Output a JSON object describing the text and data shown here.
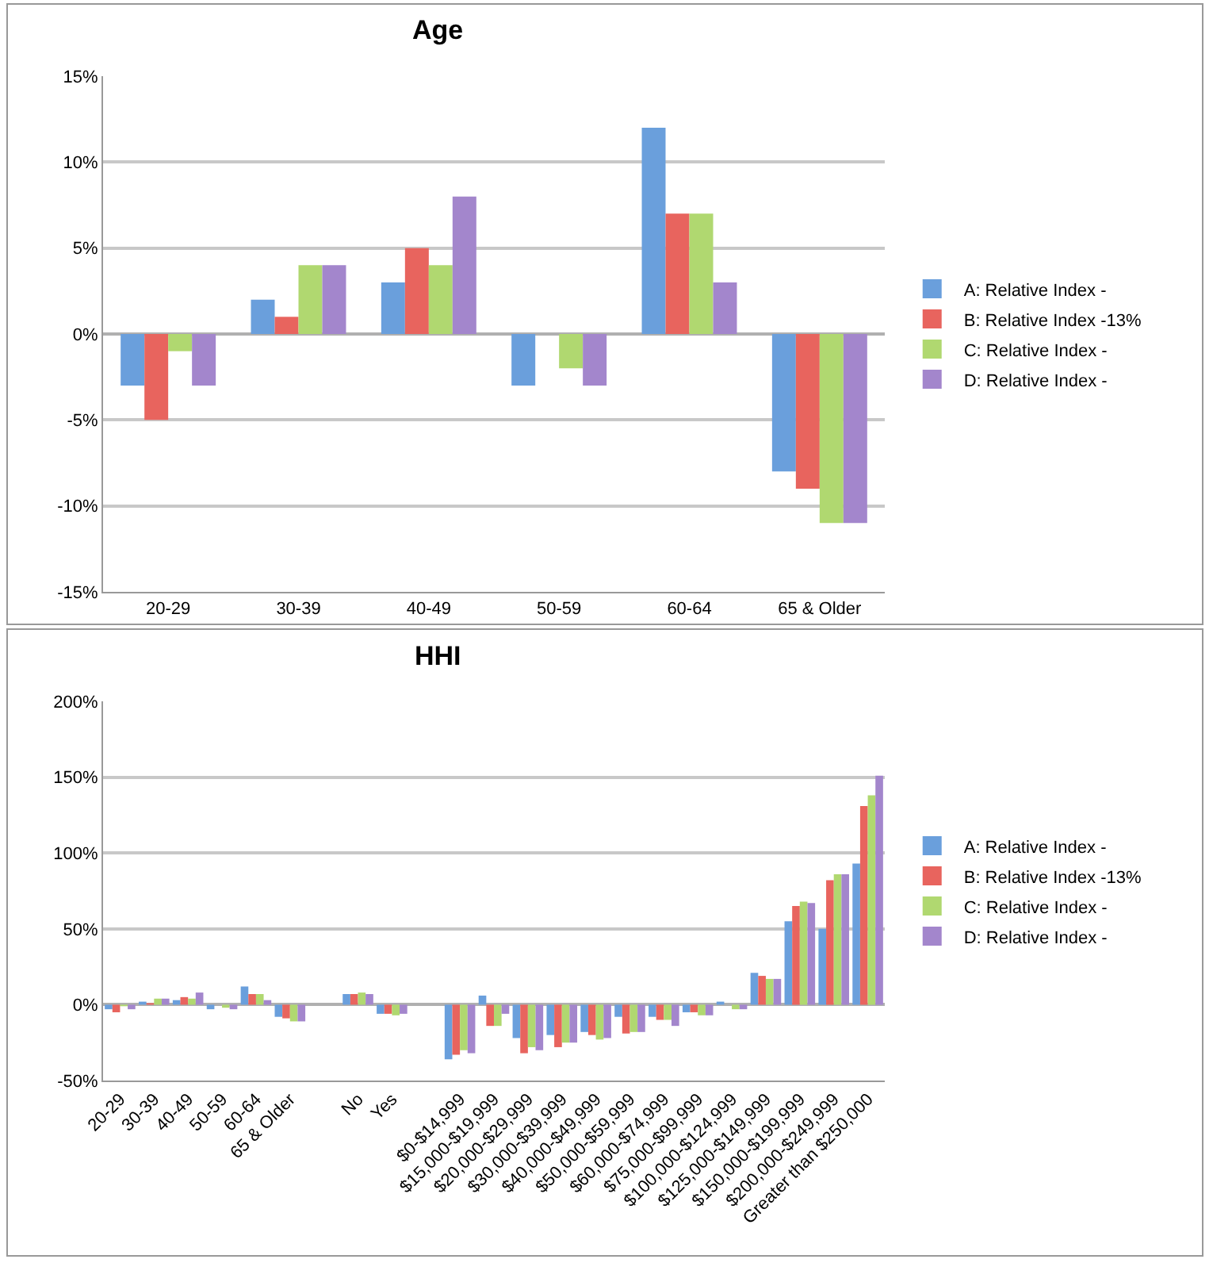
{
  "chart_data": [
    {
      "type": "bar",
      "title": "Age",
      "categories": [
        "20-29",
        "30-39",
        "40-49",
        "50-59",
        "60-64",
        "65 & Older"
      ],
      "series": [
        {
          "name": "A: Relative Index -",
          "color": "#6a9fdc",
          "values": [
            -3,
            2,
            3,
            -3,
            12,
            -8
          ]
        },
        {
          "name": "B: Relative Index -13%",
          "color": "#e8645e",
          "values": [
            -5,
            1,
            5,
            0,
            7,
            -9
          ]
        },
        {
          "name": "C: Relative Index -",
          "color": "#b0d870",
          "values": [
            -1,
            4,
            4,
            -2,
            7,
            -11
          ]
        },
        {
          "name": "D: Relative Index -",
          "color": "#a386cc",
          "values": [
            -3,
            4,
            8,
            -3,
            3,
            -11
          ]
        }
      ],
      "ylim": [
        -15,
        15
      ],
      "yticks": [
        {
          "value": -15,
          "label": "-15%"
        },
        {
          "value": -10,
          "label": "-10%"
        },
        {
          "value": -5,
          "label": "-5%"
        },
        {
          "value": 0,
          "label": "0%"
        },
        {
          "value": 5,
          "label": "5%"
        },
        {
          "value": 10,
          "label": "10%"
        },
        {
          "value": 15,
          "label": "15%"
        }
      ],
      "grid": "y",
      "legend": "right"
    },
    {
      "type": "bar",
      "title": "HHI",
      "categories": [
        "20-29",
        "30-39",
        "40-49",
        "50-59",
        "60-64",
        "65 & Older",
        null,
        "No",
        "Yes",
        null,
        "$0-$14,999",
        "$15,000-$19,999",
        "$20,000-$29,999",
        "$30,000-$39,999",
        "$40,000-$49,999",
        "$50,000-$59,999",
        "$60,000-$74,999",
        "$75,000-$99,999",
        "$100,000-$124,999",
        "$125,000-$149,999",
        "$150,000-$199,999",
        "$200,000-$249,999",
        "Greater than $250,000"
      ],
      "series": [
        {
          "name": "A: Relative Index -",
          "color": "#6a9fdc",
          "values": [
            -3,
            2,
            3,
            -3,
            12,
            -8,
            null,
            7,
            -6,
            null,
            -36,
            6,
            -22,
            -20,
            -18,
            -8,
            -8,
            -5,
            2,
            21,
            55,
            50,
            93
          ]
        },
        {
          "name": "B: Relative Index -13%",
          "color": "#e8645e",
          "values": [
            -5,
            1,
            5,
            0,
            7,
            -9,
            null,
            7,
            -6,
            null,
            -33,
            -14,
            -32,
            -28,
            -20,
            -19,
            -10,
            -5,
            0,
            19,
            65,
            82,
            131
          ]
        },
        {
          "name": "C: Relative Index -",
          "color": "#b0d870",
          "values": [
            -1,
            4,
            4,
            -2,
            7,
            -11,
            null,
            8,
            -7,
            null,
            -30,
            -14,
            -28,
            -25,
            -23,
            -18,
            -10,
            -7,
            -3,
            17,
            68,
            86,
            138
          ]
        },
        {
          "name": "D: Relative Index -",
          "color": "#a386cc",
          "values": [
            -3,
            4,
            8,
            -3,
            3,
            -11,
            null,
            7,
            -6,
            null,
            -32,
            -6,
            -30,
            -25,
            -22,
            -18,
            -14,
            -7,
            -3,
            17,
            67,
            86,
            151
          ]
        }
      ],
      "ylim": [
        -50,
        200
      ],
      "yticks": [
        {
          "value": -50,
          "label": "-50%"
        },
        {
          "value": 0,
          "label": "0%"
        },
        {
          "value": 50,
          "label": "50%"
        },
        {
          "value": 100,
          "label": "100%"
        },
        {
          "value": 150,
          "label": "150%"
        },
        {
          "value": 200,
          "label": "200%"
        }
      ],
      "grid": "y",
      "legend": "right"
    }
  ]
}
